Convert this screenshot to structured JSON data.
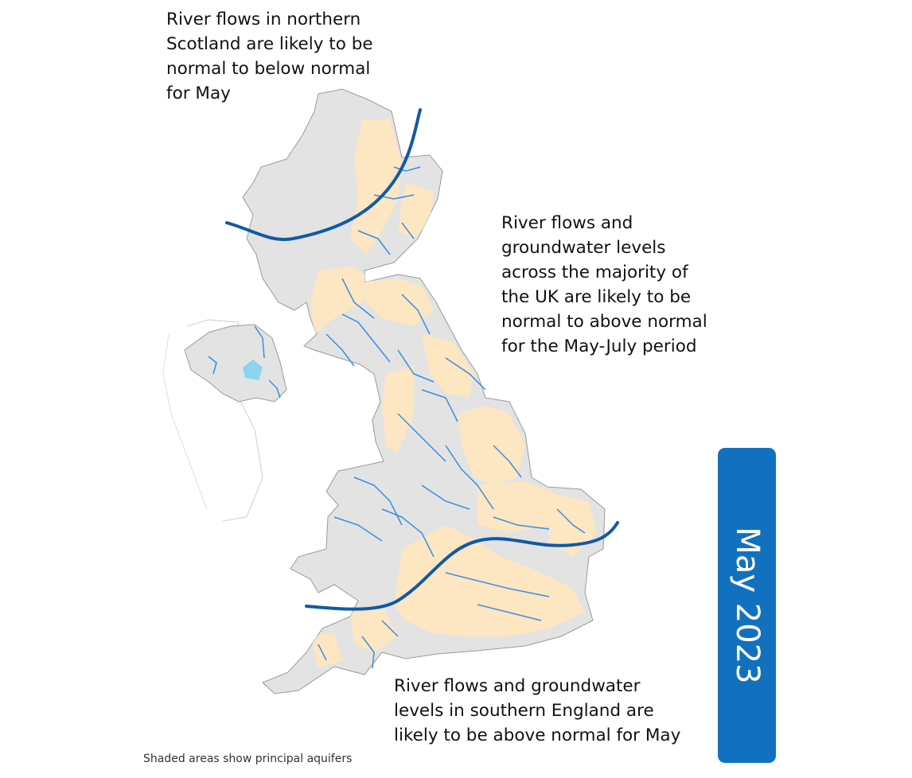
{
  "annotations": {
    "north": [
      "River flows in northern",
      "Scotland are likely to be",
      "normal to below normal",
      "for May"
    ],
    "centre": [
      "River flows and",
      "groundwater levels",
      "across the majority of",
      "the UK are likely to be",
      "normal to above normal",
      "for the May-July period"
    ],
    "south": [
      "River flows and groundwater",
      "levels in southern England are",
      "likely to be above normal for May"
    ]
  },
  "caption": "Shaded areas show principal aquifers",
  "badge": "May 2023",
  "colors": {
    "land": "#e3e3e3",
    "coast": "#9a9a9a",
    "aquifer": "#fde6c2",
    "river": "#3a8ee0",
    "boundary_line": "#0f5aa4",
    "badge": "#1271be"
  },
  "legend": {
    "aquifer_shading": "principal aquifers"
  }
}
